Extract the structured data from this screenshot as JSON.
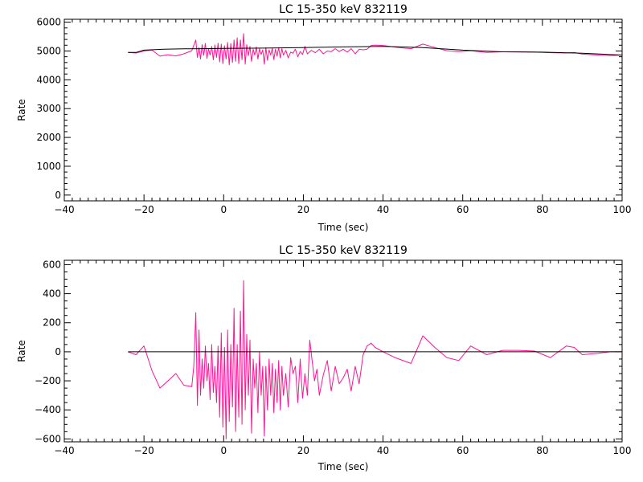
{
  "colors": {
    "background": "#ffffff",
    "axis": "#000000",
    "data_series": "#ff1493",
    "fit_series": "#000000"
  },
  "chart_data": [
    {
      "type": "line",
      "title": "LC 15-350 keV  832119",
      "xlabel": "Time (sec)",
      "ylabel": "Rate",
      "xlim": [
        -40,
        100
      ],
      "ylim": [
        -200,
        6100
      ],
      "xticks": [
        -40,
        -20,
        0,
        20,
        40,
        60,
        80,
        100
      ],
      "xtick_labels": [
        "−40",
        "−20",
        "0",
        "20",
        "40",
        "60",
        "80",
        "100"
      ],
      "yticks": [
        0,
        1000,
        2000,
        3000,
        4000,
        5000,
        6000
      ],
      "ytick_labels": [
        "0",
        "1000",
        "2000",
        "3000",
        "4000",
        "5000",
        "6000"
      ],
      "x_minor": 10,
      "y_minor": 5,
      "series": [
        {
          "role": "data",
          "color": "#ff1493",
          "points": [
            [
              -24,
              4950
            ],
            [
              -22,
              4930
            ],
            [
              -20,
              5000
            ],
            [
              -18,
              5030
            ],
            [
              -16,
              4820
            ],
            [
              -14,
              4870
            ],
            [
              -12,
              4830
            ],
            [
              -10,
              4900
            ],
            [
              -8,
              5010
            ],
            [
              -7,
              5380
            ],
            [
              -6.6,
              4780
            ],
            [
              -6.2,
              5120
            ],
            [
              -5.8,
              4720
            ],
            [
              -5.4,
              5220
            ],
            [
              -5.0,
              4850
            ],
            [
              -4.6,
              5260
            ],
            [
              -4.2,
              4740
            ],
            [
              -3.8,
              5080
            ],
            [
              -3.4,
              4860
            ],
            [
              -3.0,
              5160
            ],
            [
              -2.6,
              4690
            ],
            [
              -2.2,
              5210
            ],
            [
              -1.8,
              4780
            ],
            [
              -1.4,
              5270
            ],
            [
              -1.0,
              4620
            ],
            [
              -0.6,
              5240
            ],
            [
              -0.2,
              4560
            ],
            [
              0.2,
              5180
            ],
            [
              0.6,
              4720
            ],
            [
              1.0,
              5300
            ],
            [
              1.4,
              4520
            ],
            [
              1.8,
              5260
            ],
            [
              2.2,
              4600
            ],
            [
              2.6,
              5380
            ],
            [
              3.0,
              4640
            ],
            [
              3.4,
              5460
            ],
            [
              3.8,
              4560
            ],
            [
              4.2,
              5380
            ],
            [
              4.6,
              4700
            ],
            [
              5.0,
              5600
            ],
            [
              5.4,
              4540
            ],
            [
              5.8,
              5220
            ],
            [
              6.2,
              4840
            ],
            [
              6.6,
              5160
            ],
            [
              7.0,
              4640
            ],
            [
              7.4,
              5060
            ],
            [
              7.8,
              4860
            ],
            [
              8.2,
              5140
            ],
            [
              8.6,
              4720
            ],
            [
              9.0,
              5080
            ],
            [
              9.4,
              4880
            ],
            [
              9.8,
              5040
            ],
            [
              10.2,
              4540
            ],
            [
              10.6,
              5120
            ],
            [
              11.0,
              4680
            ],
            [
              11.4,
              5040
            ],
            [
              11.8,
              4860
            ],
            [
              12.2,
              5100
            ],
            [
              12.6,
              4700
            ],
            [
              13.0,
              5060
            ],
            [
              13.4,
              4820
            ],
            [
              13.8,
              5120
            ],
            [
              14.2,
              4760
            ],
            [
              14.6,
              5080
            ],
            [
              15.0,
              4860
            ],
            [
              15.6,
              5020
            ],
            [
              16.2,
              4760
            ],
            [
              16.8,
              4960
            ],
            [
              17.4,
              4920
            ],
            [
              18.0,
              5060
            ],
            [
              18.6,
              4800
            ],
            [
              19.2,
              4980
            ],
            [
              19.8,
              4880
            ],
            [
              20.4,
              5160
            ],
            [
              21.0,
              4900
            ],
            [
              22,
              5020
            ],
            [
              23,
              4940
            ],
            [
              24,
              5060
            ],
            [
              25,
              4900
            ],
            [
              26,
              5000
            ],
            [
              27,
              4980
            ],
            [
              28,
              5080
            ],
            [
              29,
              4980
            ],
            [
              30,
              5060
            ],
            [
              31,
              4960
            ],
            [
              32,
              5080
            ],
            [
              33,
              4900
            ],
            [
              34,
              5060
            ],
            [
              35,
              5040
            ],
            [
              36,
              5060
            ],
            [
              37,
              5190
            ],
            [
              38,
              5200
            ],
            [
              40,
              5190
            ],
            [
              44,
              5120
            ],
            [
              47,
              5080
            ],
            [
              50,
              5240
            ],
            [
              53,
              5120
            ],
            [
              56,
              5010
            ],
            [
              59,
              4980
            ],
            [
              62,
              5010
            ],
            [
              66,
              4950
            ],
            [
              70,
              4970
            ],
            [
              74,
              4970
            ],
            [
              78,
              4960
            ],
            [
              82,
              4940
            ],
            [
              86,
              4930
            ],
            [
              88,
              4950
            ],
            [
              90,
              4890
            ],
            [
              94,
              4860
            ],
            [
              97,
              4840
            ],
            [
              100,
              4860
            ]
          ]
        },
        {
          "role": "fit",
          "color": "#000000",
          "points": [
            [
              -24,
              4950
            ],
            [
              -22,
              4950
            ],
            [
              -20,
              5030
            ],
            [
              -15,
              5060
            ],
            [
              -10,
              5075
            ],
            [
              -5,
              5080
            ],
            [
              0,
              5090
            ],
            [
              10,
              5100
            ],
            [
              20,
              5120
            ],
            [
              30,
              5140
            ],
            [
              40,
              5160
            ],
            [
              50,
              5120
            ],
            [
              60,
              5030
            ],
            [
              70,
              4970
            ],
            [
              80,
              4960
            ],
            [
              90,
              4920
            ],
            [
              100,
              4860
            ]
          ]
        }
      ]
    },
    {
      "type": "line",
      "title": "LC 15-350 keV  832119",
      "xlabel": "Time (sec)",
      "ylabel": "Rate",
      "xlim": [
        -40,
        100
      ],
      "ylim": [
        -620,
        630
      ],
      "xticks": [
        -40,
        -20,
        0,
        20,
        40,
        60,
        80,
        100
      ],
      "xtick_labels": [
        "−40",
        "−20",
        "0",
        "20",
        "40",
        "60",
        "80",
        "100"
      ],
      "yticks": [
        -600,
        -400,
        -200,
        0,
        200,
        400,
        600
      ],
      "ytick_labels": [
        "−600",
        "−400",
        "−200",
        "0",
        "200",
        "400",
        "600"
      ],
      "x_minor": 10,
      "y_minor": 4,
      "series": [
        {
          "role": "data",
          "color": "#ff1493",
          "points": [
            [
              -24,
              0
            ],
            [
              -22,
              -20
            ],
            [
              -20,
              40
            ],
            [
              -18,
              -130
            ],
            [
              -16,
              -250
            ],
            [
              -14,
              -200
            ],
            [
              -12,
              -150
            ],
            [
              -10,
              -230
            ],
            [
              -8,
              -240
            ],
            [
              -7.5,
              -100
            ],
            [
              -7,
              270
            ],
            [
              -6.6,
              -370
            ],
            [
              -6.2,
              150
            ],
            [
              -5.8,
              -300
            ],
            [
              -5.4,
              -50
            ],
            [
              -5.0,
              -250
            ],
            [
              -4.6,
              40
            ],
            [
              -4.2,
              -200
            ],
            [
              -3.8,
              -80
            ],
            [
              -3.4,
              -330
            ],
            [
              -3.0,
              50
            ],
            [
              -2.6,
              -280
            ],
            [
              -2.2,
              -100
            ],
            [
              -1.8,
              -350
            ],
            [
              -1.4,
              40
            ],
            [
              -1.0,
              -450
            ],
            [
              -0.6,
              130
            ],
            [
              -0.2,
              -520
            ],
            [
              0.2,
              30
            ],
            [
              0.6,
              -600
            ],
            [
              1.0,
              150
            ],
            [
              1.4,
              -480
            ],
            [
              1.8,
              50
            ],
            [
              2.2,
              -380
            ],
            [
              2.6,
              300
            ],
            [
              3.0,
              -550
            ],
            [
              3.4,
              50
            ],
            [
              3.8,
              -450
            ],
            [
              4.2,
              280
            ],
            [
              4.6,
              -500
            ],
            [
              5.0,
              490
            ],
            [
              5.4,
              -400
            ],
            [
              5.8,
              120
            ],
            [
              6.2,
              -300
            ],
            [
              6.6,
              80
            ],
            [
              7.0,
              -560
            ],
            [
              7.4,
              -50
            ],
            [
              7.8,
              -250
            ],
            [
              8.2,
              -80
            ],
            [
              8.6,
              -420
            ],
            [
              9.0,
              0
            ],
            [
              9.4,
              -300
            ],
            [
              9.8,
              -100
            ],
            [
              10.2,
              -580
            ],
            [
              10.6,
              -100
            ],
            [
              11.0,
              -400
            ],
            [
              11.4,
              -50
            ],
            [
              11.8,
              -300
            ],
            [
              12.2,
              -80
            ],
            [
              12.6,
              -420
            ],
            [
              13.0,
              -120
            ],
            [
              13.4,
              -350
            ],
            [
              13.8,
              -60
            ],
            [
              14.2,
              -400
            ],
            [
              14.6,
              -100
            ],
            [
              15.0,
              -300
            ],
            [
              15.6,
              -150
            ],
            [
              16.2,
              -380
            ],
            [
              16.8,
              -40
            ],
            [
              17.4,
              -150
            ],
            [
              18.0,
              -100
            ],
            [
              18.6,
              -350
            ],
            [
              19.2,
              -50
            ],
            [
              19.8,
              -320
            ],
            [
              20.4,
              -150
            ],
            [
              21.0,
              -300
            ],
            [
              21.6,
              80
            ],
            [
              22.2,
              -60
            ],
            [
              22.8,
              -200
            ],
            [
              23.4,
              -120
            ],
            [
              24,
              -300
            ],
            [
              25,
              -160
            ],
            [
              26,
              -60
            ],
            [
              27,
              -270
            ],
            [
              28,
              -100
            ],
            [
              29,
              -220
            ],
            [
              30,
              -180
            ],
            [
              31,
              -120
            ],
            [
              32,
              -270
            ],
            [
              33,
              -100
            ],
            [
              34,
              -220
            ],
            [
              35,
              -20
            ],
            [
              36,
              40
            ],
            [
              37,
              60
            ],
            [
              38,
              30
            ],
            [
              40,
              0
            ],
            [
              43,
              -40
            ],
            [
              47,
              -80
            ],
            [
              50,
              110
            ],
            [
              53,
              30
            ],
            [
              56,
              -40
            ],
            [
              59,
              -60
            ],
            [
              62,
              40
            ],
            [
              66,
              -20
            ],
            [
              70,
              10
            ],
            [
              74,
              10
            ],
            [
              78,
              5
            ],
            [
              82,
              -40
            ],
            [
              86,
              40
            ],
            [
              88,
              30
            ],
            [
              90,
              -20
            ],
            [
              94,
              -10
            ],
            [
              97,
              0
            ],
            [
              100,
              0
            ]
          ]
        },
        {
          "role": "fit",
          "color": "#000000",
          "points": [
            [
              -24,
              0
            ],
            [
              100,
              0
            ]
          ]
        }
      ]
    }
  ]
}
